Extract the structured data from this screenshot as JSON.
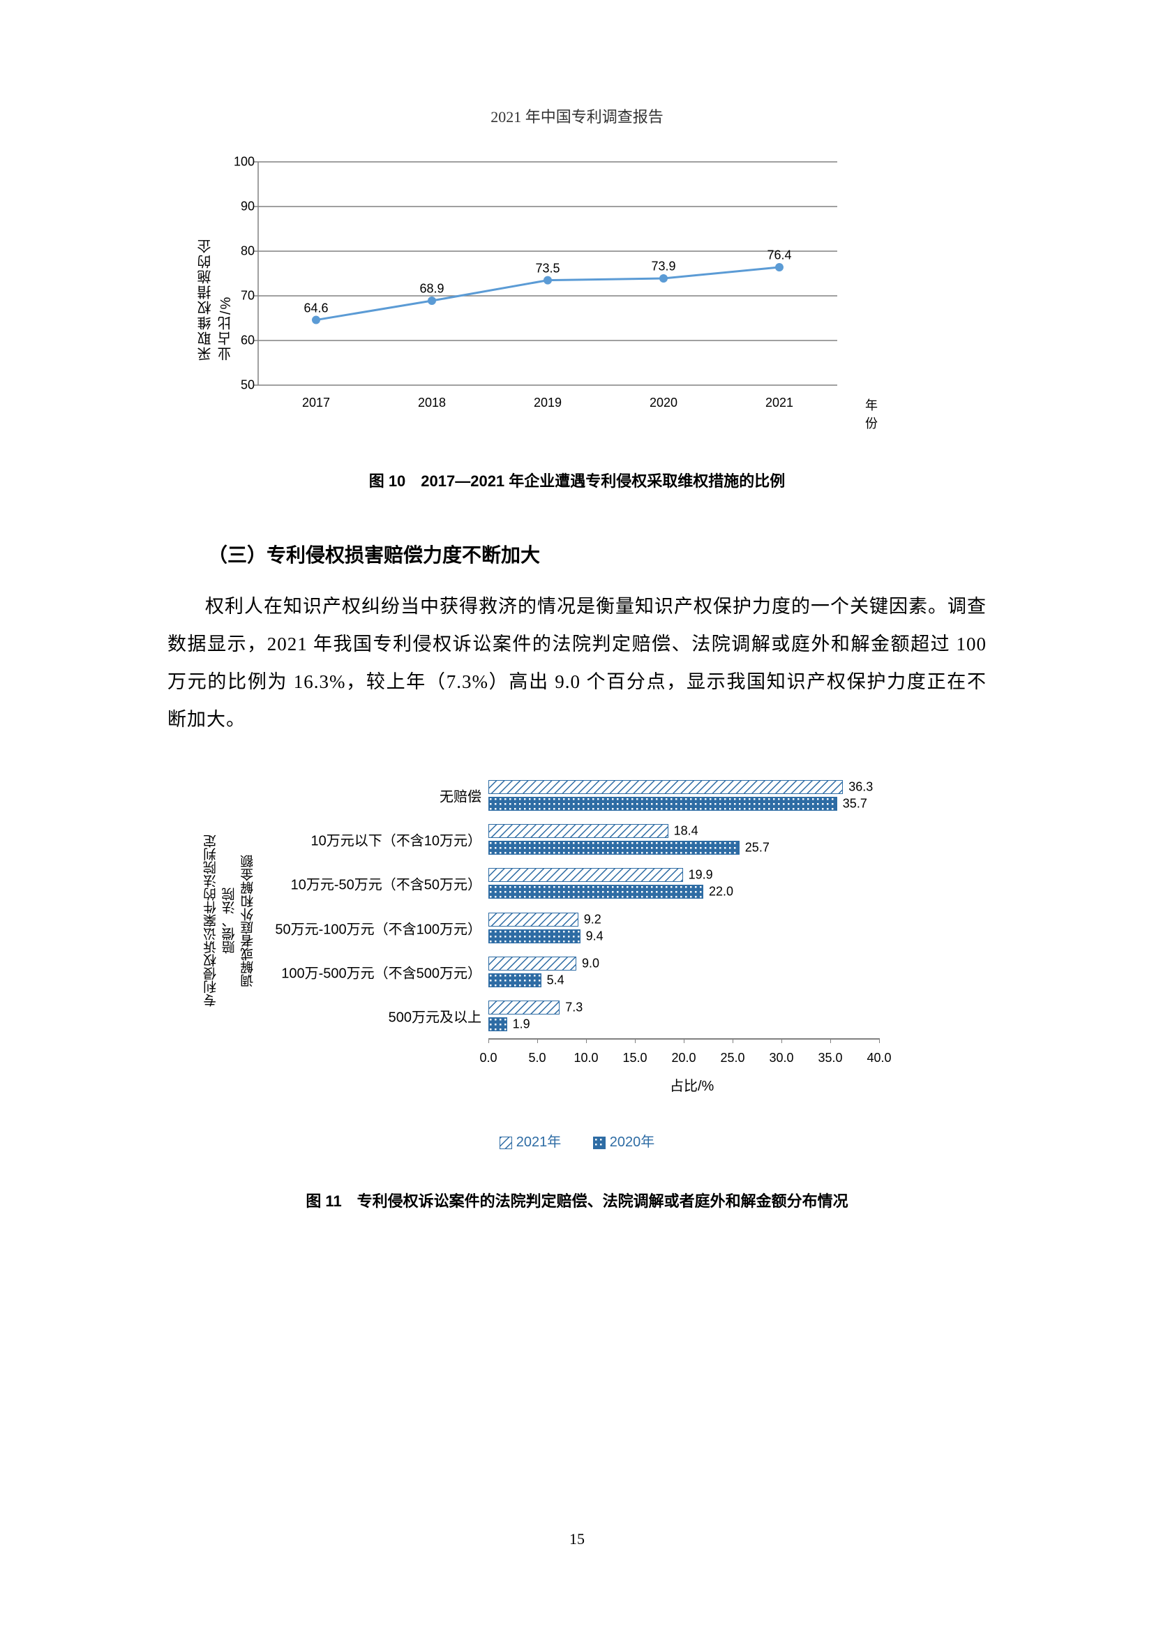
{
  "header": "2021 年中国专利调查报告",
  "page_number": "15",
  "chart1": {
    "type": "line",
    "y_axis_label": "采取维权措施的企业占比/%",
    "x_axis_label": "年份",
    "ylim": [
      50,
      100
    ],
    "ytick_step": 10,
    "yticks": [
      50,
      60,
      70,
      80,
      90,
      100
    ],
    "categories": [
      "2017",
      "2018",
      "2019",
      "2020",
      "2021"
    ],
    "values": [
      64.6,
      68.9,
      73.5,
      73.9,
      76.4
    ],
    "value_labels": [
      "64.6",
      "68.9",
      "73.5",
      "73.9",
      "76.4"
    ],
    "line_color": "#5b9bd5",
    "marker_color": "#5b9bd5",
    "grid_color": "#bfbfbf",
    "background_color": "#ffffff",
    "caption": "图 10　2017—2021 年企业遭遇专利侵权采取维权措施的比例"
  },
  "section_heading": "（三）专利侵权损害赔偿力度不断加大",
  "body_paragraph": "权利人在知识产权纠纷当中获得救济的情况是衡量知识产权保护力度的一个关键因素。调查数据显示，2021 年我国专利侵权诉讼案件的法院判定赔偿、法院调解或庭外和解金额超过 100 万元的比例为 16.3%，较上年（7.3%）高出 9.0 个百分点，显示我国知识产权保护力度正在不断加大。",
  "chart2": {
    "type": "bar",
    "orientation": "horizontal",
    "y_axis_label_line1": "专利侵权诉讼案件的法院判定赔偿、法院",
    "y_axis_label_line2": "调解或者庭外和解金额",
    "x_axis_label": "占比/%",
    "xlim": [
      0,
      40
    ],
    "xtick_step": 5,
    "xticks": [
      "0.0",
      "5.0",
      "10.0",
      "15.0",
      "20.0",
      "25.0",
      "30.0",
      "35.0",
      "40.0"
    ],
    "categories": [
      "无赔偿",
      "10万元以下（不含10万元）",
      "10万元-50万元（不含50万元）",
      "50万元-100万元（不含100万元）",
      "100万-500万元（不含500万元）",
      "500万元及以上"
    ],
    "series": [
      {
        "name": "2021年",
        "values": [
          36.3,
          18.4,
          19.9,
          9.2,
          9.0,
          7.3
        ],
        "value_labels": [
          "36.3",
          "18.4",
          "19.9",
          "9.2",
          "9.0",
          "7.3"
        ],
        "fill": "#ffffff",
        "pattern_color": "#2e6ca4",
        "border": "#2e6ca4"
      },
      {
        "name": "2020年",
        "values": [
          35.7,
          25.7,
          22.0,
          9.4,
          5.4,
          1.9
        ],
        "value_labels": [
          "35.7",
          "25.7",
          "22.0",
          "9.4",
          "5.4",
          "1.9"
        ],
        "fill": "#2e6ca4",
        "pattern_color": "#ffffff",
        "border": "#2e6ca4"
      }
    ],
    "caption": "图 11　专利侵权诉讼案件的法院判定赔偿、法院调解或者庭外和解金额分布情况"
  },
  "legend": {
    "items": [
      {
        "label": "2021年",
        "swatch_fill": "#ffffff",
        "swatch_pattern": "#2e6ca4"
      },
      {
        "label": "2020年",
        "swatch_fill": "#2e6ca4",
        "swatch_pattern": "#ffffff"
      }
    ]
  }
}
